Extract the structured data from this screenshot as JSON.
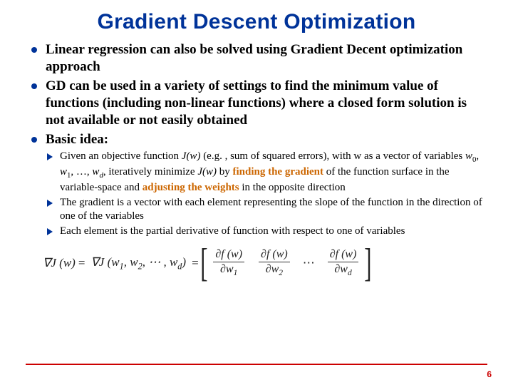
{
  "colors": {
    "title": "#003399",
    "bullet": "#003399",
    "emphasis": "#cc6600",
    "rule": "#cc0000",
    "pagenum": "#cc0000",
    "background": "#ffffff",
    "text": "#000000"
  },
  "fonts": {
    "title_family": "Arial",
    "title_size_pt": 30,
    "body_family": "Times New Roman",
    "bullet_size_pt": 19,
    "sub_size_pt": 15,
    "formula_size_pt": 17
  },
  "title": "Gradient Descent Optimization",
  "bullets": {
    "b1": "Linear regression can also be solved using Gradient Decent optimization approach",
    "b2": "GD can be used in a variety of settings to find the minimum value of functions (including non-linear functions) where a closed form solution is not available or not easily obtained",
    "b3": "Basic idea:"
  },
  "sub": {
    "s1_a": "Given an objective function ",
    "s1_jw": "J(w)",
    "s1_b": " (e.g. , sum of squared errors), with w as a vector of variables ",
    "s1_w0": "w",
    "s1_w0s": "0",
    "s1_c1": ", ",
    "s1_w1": "w",
    "s1_w1s": "1",
    "s1_c2": ", …, ",
    "s1_wd": "w",
    "s1_wds": "d",
    "s1_d": ", iteratively minimize ",
    "s1_jw2": "J(w)",
    "s1_e": " by ",
    "s1_em1": "finding the gradient",
    "s1_f": " of the function surface in the variable-space and ",
    "s1_em2": "adjusting the weights",
    "s1_g": " in the opposite direction",
    "s2": "The gradient is a vector with each element representing the slope of the function in the direction of one of the variables",
    "s3": "Each element is the partial derivative of function with respect to one of variables"
  },
  "formula": {
    "grad_prefix": "∇J (w)",
    "eq": "=",
    "grad_args_open": "∇J (w",
    "sub1": "1",
    "comma12": ", w",
    "sub2": "2",
    "comma_dots": ",   ⋯   , w",
    "subd": "d",
    "grad_args_close": ")",
    "partial_num": "∂f (w)",
    "partial_den_prefix": "∂w",
    "den1": "1",
    "den2": "2",
    "dend": "d",
    "dots": "⋯"
  },
  "page_number": "6"
}
